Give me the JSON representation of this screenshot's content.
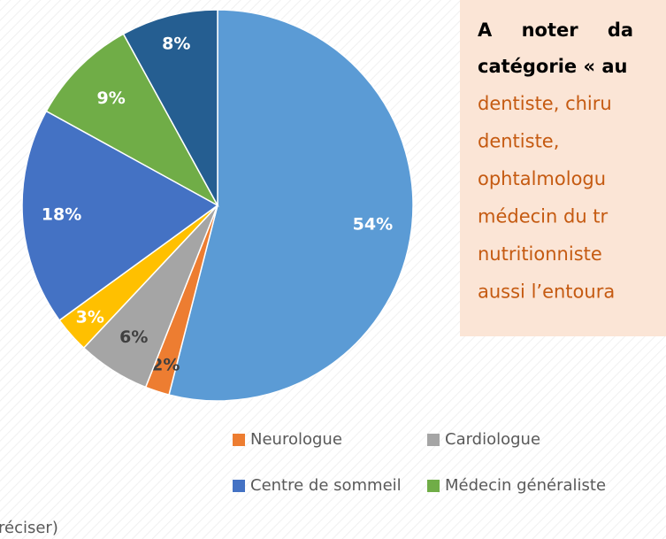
{
  "chart_data": {
    "type": "pie",
    "categories": [
      null,
      "Neurologue",
      "Cardiologue",
      null,
      "Centre de sommeil",
      "Médecin généraliste",
      "réciser)"
    ],
    "values": [
      54,
      2,
      6,
      3,
      18,
      9,
      8
    ],
    "value_labels": [
      "54%",
      "2%",
      "6%",
      "3%",
      "18%",
      "9%",
      "8%"
    ],
    "colors": [
      "#5b9bd5",
      "#ed7d31",
      "#a5a5a5",
      "#ffc000",
      "#4472c4",
      "#70ad47",
      "#255e91"
    ],
    "annotation": {
      "bold_lines": [
        "A noter da",
        "catégorie « au"
      ],
      "lines": [
        "dentiste, chiru",
        "dentiste,",
        "ophtalmologu",
        "médecin du tr",
        "nutritionniste",
        "aussi l’entoura"
      ]
    }
  }
}
